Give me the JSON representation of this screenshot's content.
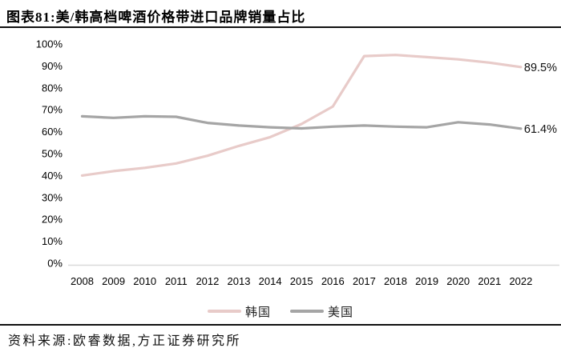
{
  "header": {
    "title": "图表81:美/韩高档啤酒价格带进口品牌销量占比"
  },
  "chart_data": {
    "type": "line",
    "title": "美/韩高档啤酒价格带进口品牌销量占比",
    "categories": [
      "2008",
      "2009",
      "2010",
      "2011",
      "2012",
      "2013",
      "2014",
      "2015",
      "2016",
      "2017",
      "2018",
      "2019",
      "2020",
      "2021",
      "2022"
    ],
    "series": [
      {
        "name": "韩国",
        "color": "#E8CBC9",
        "values": [
          40,
          42,
          43.5,
          45.5,
          49,
          53.5,
          57.5,
          63.5,
          71.5,
          94.5,
          95,
          94,
          93,
          91.5,
          89.5
        ],
        "end_label": "89.5%"
      },
      {
        "name": "美国",
        "color": "#A5A5A5",
        "values": [
          67,
          66.3,
          67,
          66.8,
          64,
          62.8,
          62,
          61.5,
          62.3,
          62.8,
          62.3,
          62,
          64.3,
          63.3,
          61.4
        ],
        "end_label": "61.4%"
      }
    ],
    "ylim": [
      0,
      100
    ],
    "ytick_step": 10,
    "ytick_labels": [
      "0%",
      "10%",
      "20%",
      "30%",
      "40%",
      "50%",
      "60%",
      "70%",
      "80%",
      "90%",
      "100%"
    ],
    "grid": false,
    "legend_position": "bottom",
    "axis_color": "#D9D9D9",
    "label_color": "#000000"
  },
  "footer": {
    "source": "资料来源:欧睿数据,方正证券研究所"
  }
}
